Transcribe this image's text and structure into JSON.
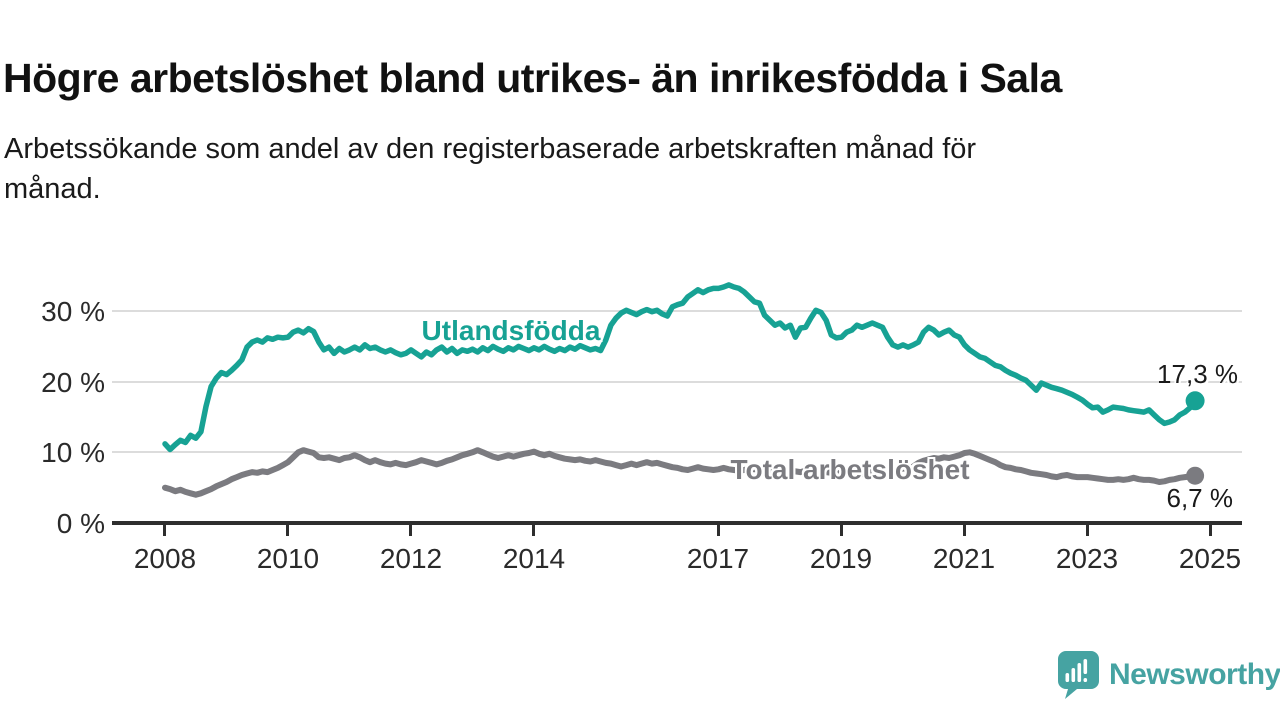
{
  "header": {
    "title": "Högre arbetslöshet bland utrikes- än inrikesfödda i Sala",
    "subtitle_line1": "Arbetssökande som andel av den registerbaserade arbetskraften månad för",
    "subtitle_line2": "månad."
  },
  "chart_data": {
    "type": "line",
    "title": "Högre arbetslöshet bland utrikes- än inrikesfödda i Sala",
    "subtitle": "Arbetssökande som andel av den registerbaserade arbetskraften månad för månad.",
    "x_start_year": 2008,
    "points_per_month": 1,
    "x_tick_years": [
      2008,
      2010,
      2012,
      2014,
      2017,
      2019,
      2021,
      2023,
      2025
    ],
    "x_tick_labels": [
      "2008",
      "2010",
      "2012",
      "2014",
      "2017",
      "2019",
      "2021",
      "2023",
      "2025"
    ],
    "y_tick_labels": [
      "30 %",
      "20 %",
      "10 %",
      "0 %"
    ],
    "y_ticks": [
      30,
      20,
      10,
      0
    ],
    "ylim": [
      0,
      35
    ],
    "grid": true,
    "colors": {
      "utlandsfodda": "#17a294",
      "total": "#7b7b80",
      "end_label": "#1a1a1a"
    },
    "series": [
      {
        "name": "Utlandsfödda",
        "label": "Utlandsfödda",
        "end_label": "17,3 %",
        "end_value": 17.3,
        "color": "#17a294",
        "values": [
          11.2,
          10.4,
          11.1,
          11.7,
          11.4,
          12.4,
          12.0,
          12.9,
          16.5,
          19.3,
          20.5,
          21.3,
          21.0,
          21.6,
          22.3,
          23.1,
          24.9,
          25.6,
          25.9,
          25.6,
          26.2,
          26.0,
          26.3,
          26.2,
          26.3,
          27.0,
          27.3,
          26.9,
          27.5,
          27.1,
          25.6,
          24.5,
          24.9,
          24.0,
          24.7,
          24.2,
          24.5,
          24.9,
          24.5,
          25.2,
          24.7,
          24.9,
          24.5,
          24.2,
          24.5,
          24.1,
          23.8,
          24.0,
          24.5,
          24.0,
          23.5,
          24.2,
          23.8,
          24.5,
          24.9,
          24.2,
          24.7,
          24.0,
          24.5,
          24.3,
          24.6,
          24.2,
          24.8,
          24.4,
          25.0,
          24.6,
          24.3,
          24.8,
          24.5,
          25.0,
          24.7,
          24.4,
          24.8,
          24.5,
          25.0,
          24.6,
          24.3,
          24.7,
          24.4,
          24.9,
          24.6,
          25.1,
          24.8,
          24.5,
          24.7,
          24.4,
          25.9,
          28.0,
          29.0,
          29.7,
          30.1,
          29.8,
          29.5,
          29.9,
          30.2,
          29.9,
          30.1,
          29.6,
          29.3,
          30.6,
          30.9,
          31.1,
          32.0,
          32.5,
          33.0,
          32.6,
          33.0,
          33.2,
          33.2,
          33.4,
          33.7,
          33.4,
          33.2,
          32.7,
          32.0,
          31.3,
          31.1,
          29.4,
          28.7,
          28.0,
          28.3,
          27.6,
          28.0,
          26.3,
          27.6,
          27.7,
          29.0,
          30.1,
          29.8,
          28.7,
          26.6,
          26.2,
          26.3,
          27.0,
          27.3,
          28.0,
          27.7,
          28.0,
          28.3,
          28.0,
          27.7,
          26.3,
          25.2,
          24.9,
          25.2,
          24.9,
          25.2,
          25.6,
          27.0,
          27.7,
          27.3,
          26.6,
          27.0,
          27.3,
          26.6,
          26.3,
          25.2,
          24.5,
          24.0,
          23.5,
          23.3,
          22.8,
          22.3,
          22.1,
          21.6,
          21.2,
          20.9,
          20.5,
          20.2,
          19.5,
          18.8,
          19.8,
          19.5,
          19.2,
          19.0,
          18.8,
          18.5,
          18.2,
          17.8,
          17.4,
          16.8,
          16.3,
          16.4,
          15.7,
          16.0,
          16.4,
          16.3,
          16.2,
          16.0,
          15.9,
          15.8,
          15.7,
          16.0,
          15.3,
          14.6,
          14.1,
          14.3,
          14.6,
          15.3,
          15.7,
          16.3,
          17.3
        ]
      },
      {
        "name": "Total arbetslöshet",
        "label": "Total arbetslöshet",
        "end_label": "6,7 %",
        "end_value": 6.7,
        "color": "#7b7b80",
        "values": [
          5.0,
          4.8,
          4.5,
          4.7,
          4.4,
          4.2,
          4.0,
          4.2,
          4.5,
          4.8,
          5.2,
          5.5,
          5.8,
          6.2,
          6.5,
          6.8,
          7.0,
          7.2,
          7.1,
          7.3,
          7.2,
          7.5,
          7.8,
          8.2,
          8.6,
          9.3,
          10.0,
          10.3,
          10.1,
          9.9,
          9.3,
          9.2,
          9.3,
          9.1,
          8.9,
          9.2,
          9.3,
          9.6,
          9.3,
          8.9,
          8.6,
          8.9,
          8.6,
          8.4,
          8.3,
          8.5,
          8.3,
          8.2,
          8.4,
          8.6,
          8.9,
          8.7,
          8.5,
          8.3,
          8.5,
          8.8,
          9.0,
          9.3,
          9.6,
          9.8,
          10.0,
          10.3,
          10.0,
          9.7,
          9.4,
          9.2,
          9.4,
          9.6,
          9.4,
          9.6,
          9.8,
          9.9,
          10.1,
          9.8,
          9.6,
          9.8,
          9.5,
          9.3,
          9.1,
          9.0,
          8.9,
          9.0,
          8.8,
          8.7,
          8.9,
          8.7,
          8.5,
          8.4,
          8.2,
          8.0,
          8.2,
          8.4,
          8.2,
          8.4,
          8.6,
          8.4,
          8.5,
          8.3,
          8.1,
          7.9,
          7.8,
          7.6,
          7.5,
          7.7,
          7.9,
          7.7,
          7.6,
          7.5,
          7.6,
          7.8,
          7.6,
          7.5,
          7.4,
          7.5,
          7.7,
          7.6,
          7.8,
          7.7,
          7.5,
          7.6,
          7.8,
          7.6,
          7.5,
          7.3,
          7.2,
          7.4,
          7.2,
          7.1,
          7.0,
          7.2,
          7.1,
          7.0,
          7.2,
          7.3,
          7.1,
          7.0,
          6.9,
          7.1,
          7.3,
          7.2,
          7.0,
          7.1,
          7.3,
          7.5,
          7.7,
          7.8,
          8.0,
          8.5,
          8.8,
          9.0,
          9.2,
          9.1,
          9.3,
          9.2,
          9.4,
          9.6,
          9.9,
          10.0,
          9.8,
          9.5,
          9.2,
          8.9,
          8.6,
          8.2,
          7.9,
          7.8,
          7.6,
          7.5,
          7.3,
          7.1,
          7.0,
          6.9,
          6.8,
          6.6,
          6.5,
          6.7,
          6.8,
          6.6,
          6.5,
          6.5,
          6.5,
          6.4,
          6.3,
          6.2,
          6.1,
          6.1,
          6.2,
          6.1,
          6.2,
          6.4,
          6.2,
          6.1,
          6.1,
          6.0,
          5.8,
          5.9,
          6.1,
          6.2,
          6.4,
          6.5,
          6.6,
          6.7
        ]
      }
    ]
  },
  "footer": {
    "brand": "Newsworthy",
    "brand_color": "#46a3a2"
  }
}
